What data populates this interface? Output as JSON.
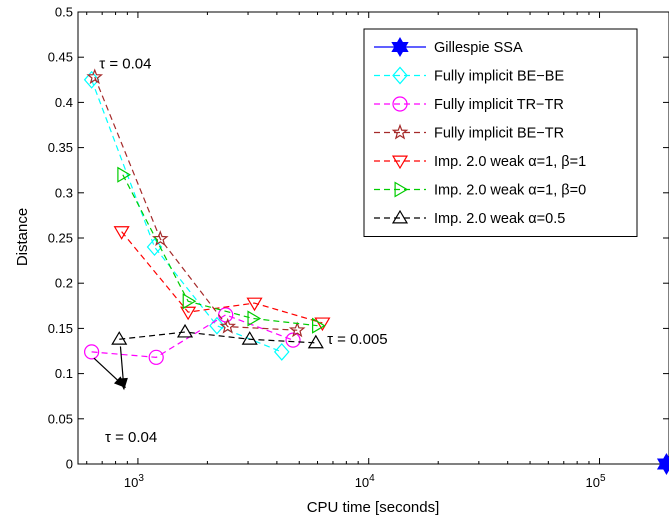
{
  "chart_data": {
    "type": "line",
    "xlabel": "CPU time [seconds]",
    "ylabel": "Distance",
    "xscale": "log",
    "xlim": [
      550,
      200000
    ],
    "ylim": [
      0,
      0.5
    ],
    "x_ticks": [
      {
        "value": 1000,
        "base": "10",
        "exp": "3"
      },
      {
        "value": 10000,
        "base": "10",
        "exp": "4"
      },
      {
        "value": 100000,
        "base": "10",
        "exp": "5"
      }
    ],
    "y_ticks": [
      "0",
      "0.05",
      "0.1",
      "0.15",
      "0.2",
      "0.25",
      "0.3",
      "0.35",
      "0.4",
      "0.45",
      "0.5"
    ],
    "y_tick_values": [
      0,
      0.05,
      0.1,
      0.15,
      0.2,
      0.25,
      0.3,
      0.35,
      0.4,
      0.45,
      0.5
    ],
    "grid": false,
    "legend_position": "top-right",
    "series": [
      {
        "name": "Gillespie SSA",
        "color": "#0000ff",
        "marker": "hexagram",
        "linestyle": "solid",
        "x": [
          195000
        ],
        "y": [
          0.0
        ]
      },
      {
        "name": "Fully implicit BE−BE",
        "color": "#00ffff",
        "marker": "diamond",
        "linestyle": "dashed",
        "x": [
          630,
          1180,
          2200,
          4200
        ],
        "y": [
          0.425,
          0.24,
          0.153,
          0.124
        ]
      },
      {
        "name": "Fully implicit TR−TR",
        "color": "#ff00ff",
        "marker": "circle",
        "linestyle": "dashed",
        "x": [
          630,
          1200,
          2400,
          4700
        ],
        "y": [
          0.124,
          0.118,
          0.165,
          0.137
        ]
      },
      {
        "name": "Fully implicit BE−TR",
        "color": "#a52a2a",
        "marker": "star",
        "linestyle": "dashed",
        "x": [
          650,
          1250,
          2450,
          4900
        ],
        "y": [
          0.428,
          0.249,
          0.152,
          0.148
        ]
      },
      {
        "name": "Imp. 2.0 weak α=1, β=1",
        "color": "#ff0000",
        "marker": "triangle-down",
        "linestyle": "dashed",
        "x": [
          850,
          1650,
          3200,
          6300
        ],
        "y": [
          0.257,
          0.168,
          0.178,
          0.156
        ]
      },
      {
        "name": "Imp. 2.0 weak α=1, β=0",
        "color": "#00cc00",
        "marker": "triangle-right",
        "linestyle": "dashed",
        "x": [
          860,
          1650,
          3150,
          6000
        ],
        "y": [
          0.32,
          0.18,
          0.161,
          0.153
        ]
      },
      {
        "name": "Imp. 2.0 weak α=0.5",
        "color": "#000000",
        "marker": "triangle-up",
        "linestyle": "dashed",
        "x": [
          830,
          1600,
          3050,
          5900
        ],
        "y": [
          0.138,
          0.146,
          0.138,
          0.134
        ]
      }
    ],
    "annotations": [
      {
        "text": "τ = 0.04",
        "x": 680,
        "y": 0.443
      },
      {
        "text": "τ = 0.005",
        "x": 6600,
        "y": 0.138
      },
      {
        "text": "τ = 0.04",
        "x": 720,
        "y": 0.03
      }
    ],
    "arrows": [
      {
        "from_x": 645,
        "from_y": 0.117,
        "to_x": 880,
        "to_y": 0.085
      },
      {
        "from_x": 840,
        "from_y": 0.13,
        "to_x": 870,
        "to_y": 0.083
      }
    ]
  }
}
